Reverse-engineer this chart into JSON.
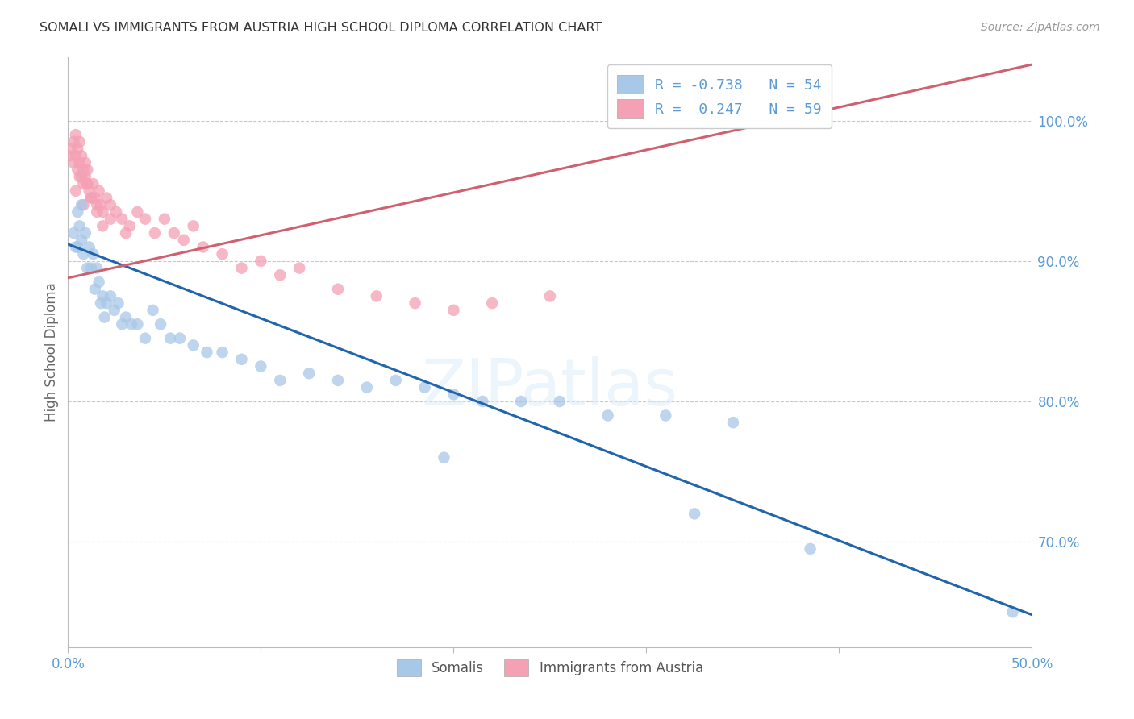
{
  "title": "SOMALI VS IMMIGRANTS FROM AUSTRIA HIGH SCHOOL DIPLOMA CORRELATION CHART",
  "source": "Source: ZipAtlas.com",
  "ylabel": "High School Diploma",
  "xlim": [
    0.0,
    0.5
  ],
  "ylim": [
    0.625,
    1.045
  ],
  "yticks": [
    0.7,
    0.8,
    0.9,
    1.0
  ],
  "ytick_labels": [
    "70.0%",
    "80.0%",
    "90.0%",
    "100.0%"
  ],
  "xtick_left": "0.0%",
  "xtick_right": "50.0%",
  "legend_blue_r": "-0.738",
  "legend_blue_n": "54",
  "legend_pink_r": "0.247",
  "legend_pink_n": "59",
  "legend_label_blue": "Somalis",
  "legend_label_pink": "Immigrants from Austria",
  "blue_color": "#a8c8e8",
  "pink_color": "#f4a0b5",
  "blue_line_color": "#2166ac",
  "pink_line_color": "#d06070",
  "watermark": "ZIPatlas",
  "blue_line_x": [
    0.0,
    0.5
  ],
  "blue_line_y": [
    0.912,
    0.648
  ],
  "pink_line_x": [
    0.0,
    0.5
  ],
  "pink_line_y": [
    0.888,
    1.04
  ],
  "blue_x": [
    0.003,
    0.004,
    0.005,
    0.005,
    0.006,
    0.007,
    0.007,
    0.008,
    0.009,
    0.01,
    0.011,
    0.012,
    0.013,
    0.014,
    0.015,
    0.016,
    0.017,
    0.018,
    0.019,
    0.02,
    0.022,
    0.024,
    0.026,
    0.028,
    0.03,
    0.033,
    0.036,
    0.04,
    0.044,
    0.048,
    0.053,
    0.058,
    0.065,
    0.072,
    0.08,
    0.09,
    0.1,
    0.11,
    0.125,
    0.14,
    0.155,
    0.17,
    0.185,
    0.2,
    0.215,
    0.235,
    0.255,
    0.28,
    0.31,
    0.345,
    0.195,
    0.325,
    0.385,
    0.49
  ],
  "blue_y": [
    0.92,
    0.91,
    0.935,
    0.91,
    0.925,
    0.94,
    0.915,
    0.905,
    0.92,
    0.895,
    0.91,
    0.895,
    0.905,
    0.88,
    0.895,
    0.885,
    0.87,
    0.875,
    0.86,
    0.87,
    0.875,
    0.865,
    0.87,
    0.855,
    0.86,
    0.855,
    0.855,
    0.845,
    0.865,
    0.855,
    0.845,
    0.845,
    0.84,
    0.835,
    0.835,
    0.83,
    0.825,
    0.815,
    0.82,
    0.815,
    0.81,
    0.815,
    0.81,
    0.805,
    0.8,
    0.8,
    0.8,
    0.79,
    0.79,
    0.785,
    0.76,
    0.72,
    0.695,
    0.65
  ],
  "pink_x": [
    0.001,
    0.002,
    0.003,
    0.003,
    0.004,
    0.004,
    0.005,
    0.005,
    0.006,
    0.006,
    0.007,
    0.007,
    0.008,
    0.008,
    0.009,
    0.009,
    0.01,
    0.01,
    0.011,
    0.012,
    0.013,
    0.014,
    0.015,
    0.016,
    0.017,
    0.018,
    0.02,
    0.022,
    0.025,
    0.028,
    0.032,
    0.036,
    0.04,
    0.045,
    0.05,
    0.055,
    0.06,
    0.065,
    0.07,
    0.08,
    0.09,
    0.1,
    0.11,
    0.12,
    0.14,
    0.16,
    0.18,
    0.2,
    0.22,
    0.25,
    0.004,
    0.006,
    0.008,
    0.01,
    0.012,
    0.015,
    0.018,
    0.022,
    0.03
  ],
  "pink_y": [
    0.975,
    0.98,
    0.97,
    0.985,
    0.975,
    0.99,
    0.965,
    0.98,
    0.97,
    0.985,
    0.96,
    0.975,
    0.965,
    0.955,
    0.96,
    0.97,
    0.955,
    0.965,
    0.95,
    0.945,
    0.955,
    0.945,
    0.94,
    0.95,
    0.94,
    0.935,
    0.945,
    0.94,
    0.935,
    0.93,
    0.925,
    0.935,
    0.93,
    0.92,
    0.93,
    0.92,
    0.915,
    0.925,
    0.91,
    0.905,
    0.895,
    0.9,
    0.89,
    0.895,
    0.88,
    0.875,
    0.87,
    0.865,
    0.87,
    0.875,
    0.95,
    0.96,
    0.94,
    0.955,
    0.945,
    0.935,
    0.925,
    0.93,
    0.92
  ]
}
